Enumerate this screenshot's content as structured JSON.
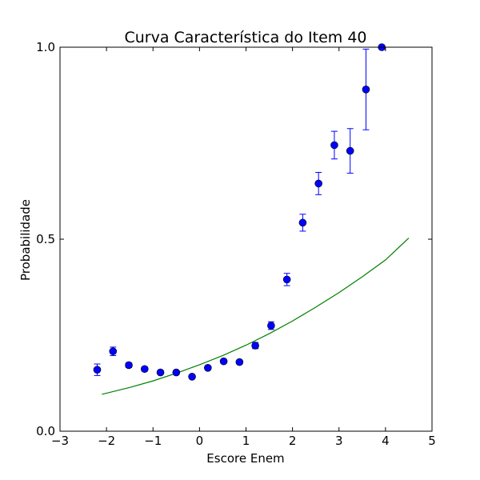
{
  "chart_data": {
    "type": "scatter",
    "title": "Curva Característica do Item 40",
    "xlabel": "Escore Enem",
    "ylabel": "Probabilidade",
    "xlim": [
      -3,
      5
    ],
    "ylim": [
      0,
      1.0
    ],
    "xticks": [
      -3,
      -2,
      -1,
      0,
      1,
      2,
      3,
      4,
      5
    ],
    "xtick_labels": [
      "−3",
      "−2",
      "−1",
      "0",
      "1",
      "2",
      "3",
      "4",
      "5"
    ],
    "yticks": [
      0,
      0.5,
      1.0
    ],
    "ytick_labels": [
      "0.0",
      "0.5",
      "1.0"
    ],
    "grid": false,
    "colors": {
      "points": "#0000ff",
      "curve": "#008000"
    },
    "points": [
      {
        "x": -2.2,
        "y": 0.16,
        "err": 0.015
      },
      {
        "x": -1.86,
        "y": 0.208,
        "err": 0.011
      },
      {
        "x": -1.52,
        "y": 0.172,
        "err": 0.006
      },
      {
        "x": -1.18,
        "y": 0.162,
        "err": 0.005
      },
      {
        "x": -0.84,
        "y": 0.153,
        "err": 0.004
      },
      {
        "x": -0.5,
        "y": 0.153,
        "err": 0.004
      },
      {
        "x": -0.16,
        "y": 0.142,
        "err": 0.004
      },
      {
        "x": 0.18,
        "y": 0.165,
        "err": 0.004
      },
      {
        "x": 0.52,
        "y": 0.182,
        "err": 0.005
      },
      {
        "x": 0.86,
        "y": 0.18,
        "err": 0.005
      },
      {
        "x": 1.2,
        "y": 0.223,
        "err": 0.008
      },
      {
        "x": 1.54,
        "y": 0.275,
        "err": 0.01
      },
      {
        "x": 1.88,
        "y": 0.395,
        "err": 0.016
      },
      {
        "x": 2.22,
        "y": 0.543,
        "err": 0.022
      },
      {
        "x": 2.56,
        "y": 0.645,
        "err": 0.029
      },
      {
        "x": 2.9,
        "y": 0.745,
        "err": 0.036
      },
      {
        "x": 3.24,
        "y": 0.73,
        "err": 0.058
      },
      {
        "x": 3.58,
        "y": 0.89,
        "err": 0.105
      },
      {
        "x": 3.92,
        "y": 1.0,
        "err": 0.0
      }
    ],
    "curve": {
      "x": [
        -2.1,
        -1.5,
        -1.0,
        -0.5,
        0.0,
        0.5,
        1.0,
        1.5,
        2.0,
        2.5,
        3.0,
        3.5,
        4.0,
        4.5
      ],
      "y": [
        0.096,
        0.114,
        0.131,
        0.151,
        0.173,
        0.197,
        0.224,
        0.254,
        0.287,
        0.323,
        0.361,
        0.402,
        0.446,
        0.503
      ]
    }
  }
}
